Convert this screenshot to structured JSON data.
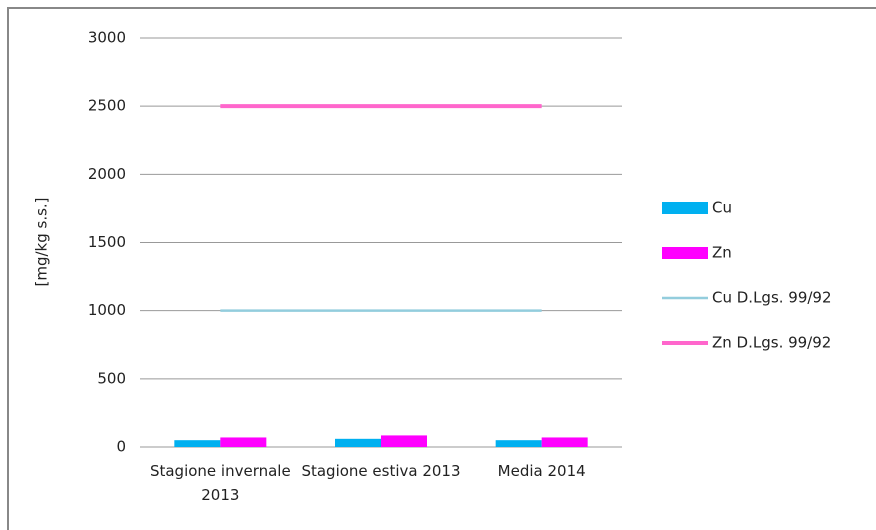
{
  "chart_data": {
    "type": "bar",
    "y_label": "[mg/kg s.s.]",
    "categories": [
      "Stagione invernale 2013",
      "Stagione estiva 2013",
      "Media 2014"
    ],
    "series": [
      {
        "name": "Cu",
        "type": "bar",
        "color": "#00b0f0",
        "values": [
          50,
          60,
          50
        ]
      },
      {
        "name": "Zn",
        "type": "bar",
        "color": "#ff00ff",
        "values": [
          70,
          85,
          70
        ]
      },
      {
        "name": "Cu D.Lgs. 99/92",
        "type": "line",
        "color": "#93cddd",
        "values": [
          1000,
          1000,
          1000
        ]
      },
      {
        "name": "Zn D.Lgs. 99/92",
        "type": "line",
        "color": "#ff66cc",
        "values": [
          2500,
          2500,
          2500
        ]
      }
    ],
    "ylim": [
      0,
      3000
    ],
    "yticks": [
      0,
      500,
      1000,
      1500,
      2000,
      2500,
      3000
    ],
    "grid": true
  }
}
